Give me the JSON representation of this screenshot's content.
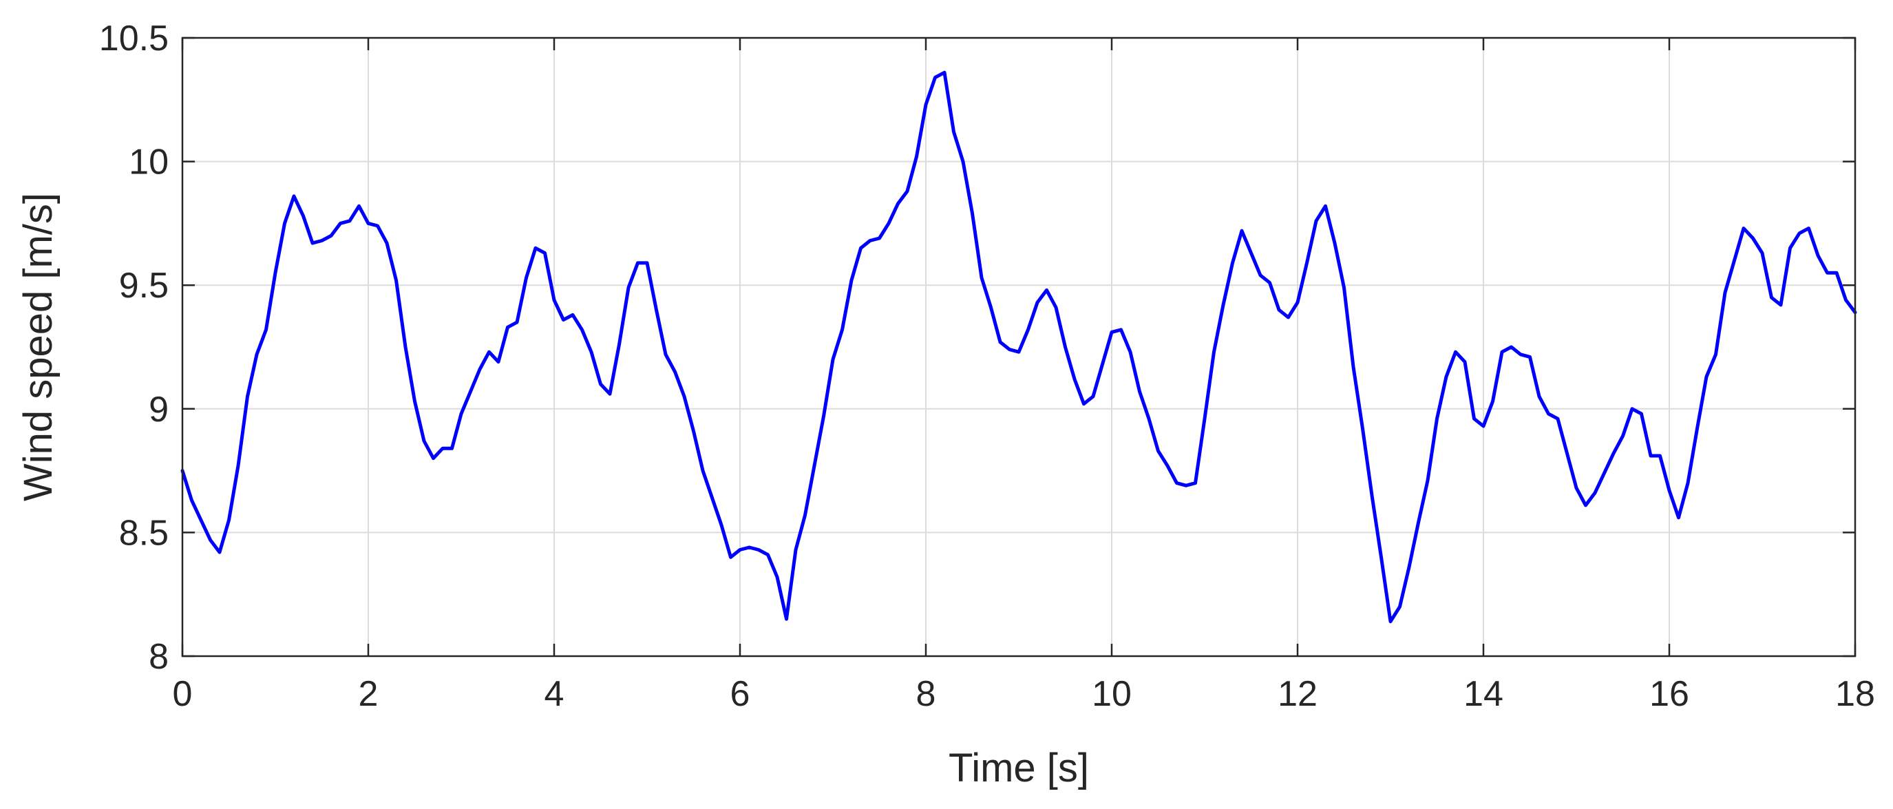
{
  "chart_data": {
    "type": "line",
    "title": "",
    "xlabel": "Time [s]",
    "ylabel": "Wind speed [m/s]",
    "xlim": [
      0,
      18
    ],
    "ylim": [
      8,
      10.5
    ],
    "x_ticks": [
      "0",
      "2",
      "4",
      "6",
      "8",
      "10",
      "12",
      "14",
      "16",
      "18"
    ],
    "y_ticks": [
      "8",
      "8.5",
      "9",
      "9.5",
      "10",
      "10.5"
    ],
    "grid": true,
    "legend": "none",
    "line_color": "#0000ff",
    "series": [
      {
        "x": [
          0,
          0.1,
          0.2,
          0.3,
          0.4,
          0.5,
          0.6,
          0.7,
          0.8,
          0.9,
          1.0,
          1.1,
          1.2,
          1.3,
          1.4,
          1.5,
          1.6,
          1.7,
          1.8,
          1.9,
          2.0,
          2.1,
          2.2,
          2.3,
          2.4,
          2.5,
          2.6,
          2.7,
          2.8,
          2.9,
          3.0,
          3.1,
          3.2,
          3.3,
          3.4,
          3.5,
          3.6,
          3.7,
          3.8,
          3.9,
          4.0,
          4.1,
          4.2,
          4.3,
          4.4,
          4.5,
          4.6,
          4.7,
          4.8,
          4.9,
          5.0,
          5.1,
          5.2,
          5.3,
          5.4,
          5.5,
          5.6,
          5.7,
          5.8,
          5.9,
          6.0,
          6.1,
          6.2,
          6.3,
          6.4,
          6.5,
          6.6,
          6.7,
          6.8,
          6.9,
          7.0,
          7.1,
          7.2,
          7.3,
          7.4,
          7.5,
          7.6,
          7.7,
          7.8,
          7.9,
          8.0,
          8.1,
          8.2,
          8.3,
          8.4,
          8.5,
          8.6,
          8.7,
          8.8,
          8.9,
          9.0,
          9.1,
          9.2,
          9.3,
          9.4,
          9.5,
          9.6,
          9.7,
          9.8,
          9.9,
          10.0,
          10.1,
          10.2,
          10.3,
          10.4,
          10.5,
          10.6,
          10.7,
          10.8,
          10.9,
          11.0,
          11.1,
          11.2,
          11.3,
          11.4,
          11.5,
          11.6,
          11.7,
          11.8,
          11.9,
          12.0,
          12.1,
          12.2,
          12.3,
          12.4,
          12.5,
          12.6,
          12.7,
          12.8,
          12.9,
          13.0,
          13.1,
          13.2,
          13.3,
          13.4,
          13.5,
          13.6,
          13.7,
          13.8,
          13.9,
          14.0,
          14.1,
          14.2,
          14.3,
          14.4,
          14.5,
          14.6,
          14.7,
          14.8,
          14.9,
          15.0,
          15.1,
          15.2,
          15.3,
          15.4,
          15.5,
          15.6,
          15.7,
          15.8,
          15.9,
          16.0,
          16.1,
          16.2,
          16.3,
          16.4,
          16.5,
          16.6,
          16.7,
          16.8,
          16.9,
          17.0,
          17.1,
          17.2,
          17.3,
          17.4,
          17.5,
          17.6,
          17.7,
          17.8,
          17.9,
          18.0
        ],
        "values": [
          8.75,
          8.63,
          8.55,
          8.47,
          8.42,
          8.55,
          8.77,
          9.05,
          9.22,
          9.32,
          9.55,
          9.75,
          9.86,
          9.78,
          9.67,
          9.68,
          9.7,
          9.75,
          9.76,
          9.82,
          9.75,
          9.74,
          9.67,
          9.52,
          9.25,
          9.03,
          8.87,
          8.8,
          8.84,
          8.84,
          8.98,
          9.07,
          9.16,
          9.23,
          9.19,
          9.33,
          9.35,
          9.53,
          9.65,
          9.63,
          9.44,
          9.36,
          9.38,
          9.32,
          9.23,
          9.1,
          9.06,
          9.26,
          9.49,
          9.59,
          9.59,
          9.4,
          9.22,
          9.15,
          9.05,
          8.91,
          8.75,
          8.64,
          8.53,
          8.4,
          8.43,
          8.44,
          8.43,
          8.41,
          8.32,
          8.15,
          8.43,
          8.57,
          8.77,
          8.97,
          9.2,
          9.32,
          9.52,
          9.65,
          9.68,
          9.69,
          9.75,
          9.83,
          9.88,
          10.02,
          10.23,
          10.34,
          10.36,
          10.12,
          10.0,
          9.79,
          9.53,
          9.41,
          9.27,
          9.24,
          9.23,
          9.32,
          9.43,
          9.48,
          9.41,
          9.25,
          9.12,
          9.02,
          9.05,
          9.18,
          9.31,
          9.32,
          9.23,
          9.07,
          8.96,
          8.83,
          8.77,
          8.7,
          8.69,
          8.7,
          8.96,
          9.23,
          9.42,
          9.59,
          9.72,
          9.63,
          9.54,
          9.51,
          9.4,
          9.37,
          9.43,
          9.59,
          9.76,
          9.82,
          9.67,
          9.49,
          9.17,
          8.92,
          8.65,
          8.4,
          8.14,
          8.2,
          8.36,
          8.54,
          8.71,
          8.96,
          9.13,
          9.23,
          9.19,
          8.96,
          8.93,
          9.03,
          9.23,
          9.25,
          9.22,
          9.21,
          9.05,
          8.98,
          8.96,
          8.82,
          8.68,
          8.61,
          8.66,
          8.74,
          8.82,
          8.89,
          9.0,
          8.98,
          8.81,
          8.81,
          8.67,
          8.56,
          8.7,
          8.92,
          9.13,
          9.22,
          9.47,
          9.6,
          9.73,
          9.69,
          9.63,
          9.45,
          9.42,
          9.65,
          9.71,
          9.73,
          9.62,
          9.55,
          9.55,
          9.44,
          9.39
        ]
      }
    ]
  }
}
